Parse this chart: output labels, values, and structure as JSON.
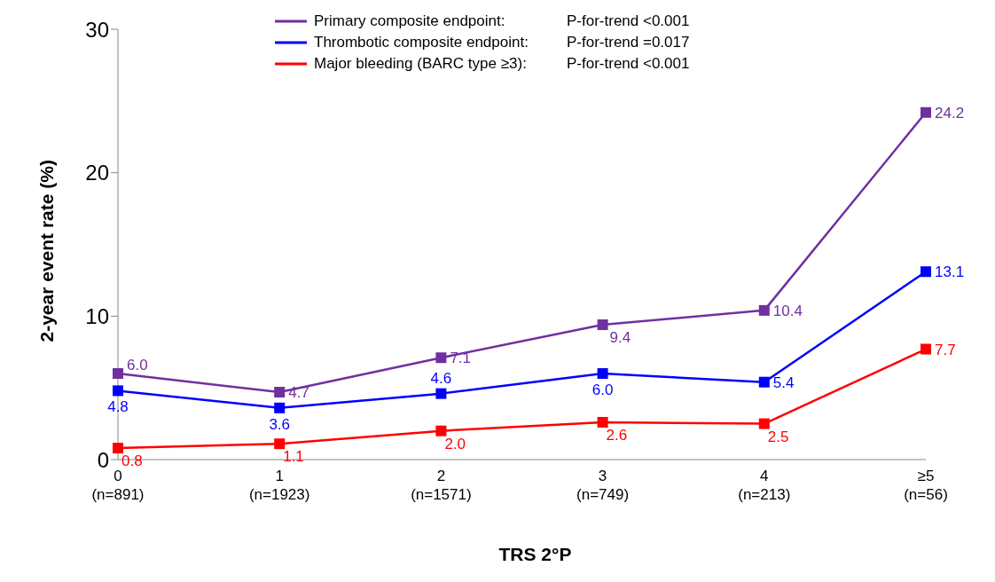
{
  "chart_data": {
    "type": "line",
    "xlabel": "TRS 2°P",
    "ylabel": "2-year event rate (%)",
    "categories": [
      "0\n(n=891)",
      "1\n(n=1923)",
      "2\n(n=1571)",
      "3\n(n=749)",
      "4\n(n=213)",
      "≥5\n(n=56)"
    ],
    "series": [
      {
        "name": "Primary composite endpoint:",
        "color": "#7030a0",
        "values": [
          6.0,
          4.7,
          7.1,
          9.4,
          10.4,
          24.2
        ],
        "value_labels": [
          "6.0",
          "4.7",
          "7.1",
          "9.4",
          "10.4",
          "24.2"
        ]
      },
      {
        "name": "Thrombotic composite endpoint:",
        "color": "#0000ff",
        "values": [
          4.8,
          3.6,
          4.6,
          6.0,
          5.4,
          13.1
        ],
        "value_labels": [
          "4.8",
          "3.6",
          "4.6",
          "6.0",
          "5.4",
          "13.1"
        ]
      },
      {
        "name": "Major bleeding (BARC type ≥3):",
        "color": "#ff0000",
        "values": [
          0.8,
          1.1,
          2.0,
          2.6,
          2.5,
          7.7
        ],
        "value_labels": [
          "0.8",
          "1.1",
          "2.0",
          "2.6",
          "2.5",
          "7.7"
        ]
      }
    ],
    "annotations": [
      "P-for-trend <0.001",
      "P-for-trend =0.017",
      "P-for-trend <0.001"
    ],
    "ylim": [
      0,
      30
    ],
    "yticks": [
      0,
      10,
      20,
      30
    ],
    "grid": false,
    "legend": "top",
    "marker": "square",
    "line_style": "solid"
  }
}
